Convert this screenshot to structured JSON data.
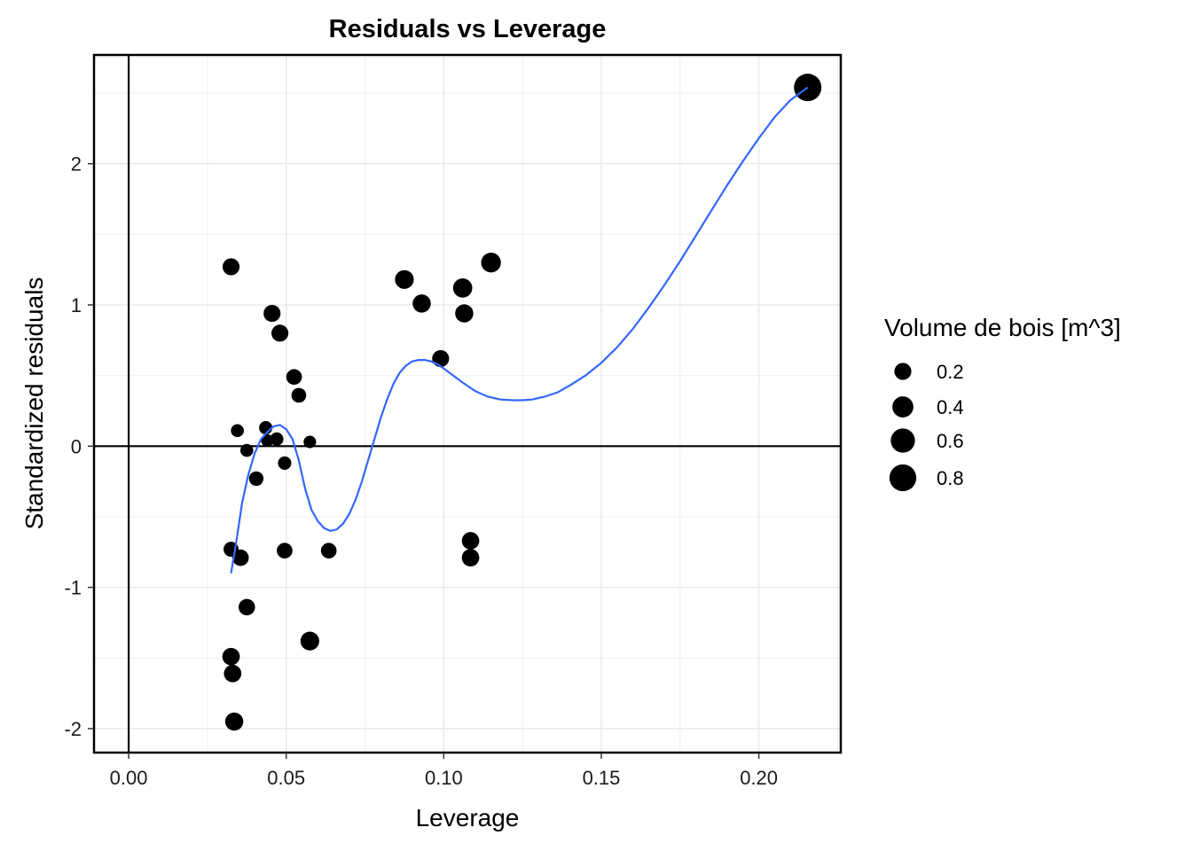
{
  "chart_data": {
    "type": "scatter",
    "title": "Residuals vs Leverage",
    "xlabel": "Leverage",
    "ylabel": "Standardized residuals",
    "xlim": [
      -0.011,
      0.226
    ],
    "ylim": [
      -2.17,
      2.77
    ],
    "x_ticks": [
      0.0,
      0.05,
      0.1,
      0.15,
      0.2
    ],
    "x_tick_labels": [
      "0.00",
      "0.05",
      "0.10",
      "0.15",
      "0.20"
    ],
    "y_ticks": [
      -2,
      -1,
      0,
      1,
      2
    ],
    "y_tick_labels": [
      "-2",
      "-1",
      "0",
      "1",
      "2"
    ],
    "grid": true,
    "reference_lines": {
      "x": 0,
      "y": 0
    },
    "legend": {
      "title": "Volume de bois  [m^3]",
      "placement": "right",
      "entries": [
        {
          "label": "0.2",
          "value": 0.2
        },
        {
          "label": "0.4",
          "value": 0.4
        },
        {
          "label": "0.6",
          "value": 0.6
        },
        {
          "label": "0.8",
          "value": 0.8
        }
      ]
    },
    "size_scale": {
      "domain": [
        0.0,
        0.85
      ]
    },
    "points": [
      {
        "x": 0.0325,
        "y": 1.27,
        "size": 0.2
      },
      {
        "x": 0.0455,
        "y": 0.94,
        "size": 0.2
      },
      {
        "x": 0.048,
        "y": 0.8,
        "size": 0.2
      },
      {
        "x": 0.0525,
        "y": 0.49,
        "size": 0.15
      },
      {
        "x": 0.054,
        "y": 0.36,
        "size": 0.12
      },
      {
        "x": 0.0345,
        "y": 0.11,
        "size": 0.07
      },
      {
        "x": 0.0435,
        "y": 0.13,
        "size": 0.08
      },
      {
        "x": 0.044,
        "y": 0.04,
        "size": 0.06
      },
      {
        "x": 0.047,
        "y": 0.05,
        "size": 0.08
      },
      {
        "x": 0.0575,
        "y": 0.03,
        "size": 0.06
      },
      {
        "x": 0.0375,
        "y": -0.03,
        "size": 0.07
      },
      {
        "x": 0.0495,
        "y": -0.12,
        "size": 0.08
      },
      {
        "x": 0.0405,
        "y": -0.23,
        "size": 0.11
      },
      {
        "x": 0.0325,
        "y": -0.73,
        "size": 0.13
      },
      {
        "x": 0.0355,
        "y": -0.79,
        "size": 0.18
      },
      {
        "x": 0.0495,
        "y": -0.74,
        "size": 0.15
      },
      {
        "x": 0.0635,
        "y": -0.74,
        "size": 0.15
      },
      {
        "x": 0.0375,
        "y": -1.14,
        "size": 0.18
      },
      {
        "x": 0.0575,
        "y": -1.38,
        "size": 0.28
      },
      {
        "x": 0.0325,
        "y": -1.49,
        "size": 0.22
      },
      {
        "x": 0.033,
        "y": -1.61,
        "size": 0.22
      },
      {
        "x": 0.0335,
        "y": -1.95,
        "size": 0.25
      },
      {
        "x": 0.0875,
        "y": 1.18,
        "size": 0.28
      },
      {
        "x": 0.093,
        "y": 1.01,
        "size": 0.25
      },
      {
        "x": 0.106,
        "y": 1.12,
        "size": 0.3
      },
      {
        "x": 0.1065,
        "y": 0.94,
        "size": 0.25
      },
      {
        "x": 0.115,
        "y": 1.3,
        "size": 0.33
      },
      {
        "x": 0.099,
        "y": 0.62,
        "size": 0.2
      },
      {
        "x": 0.1085,
        "y": -0.67,
        "size": 0.22
      },
      {
        "x": 0.1085,
        "y": -0.79,
        "size": 0.22
      },
      {
        "x": 0.2155,
        "y": 2.54,
        "size": 0.85
      }
    ],
    "smooth_line": {
      "color": "#3366ff",
      "points": [
        [
          0.0325,
          -0.9
        ],
        [
          0.034,
          -0.7
        ],
        [
          0.036,
          -0.4
        ],
        [
          0.038,
          -0.2
        ],
        [
          0.04,
          -0.05
        ],
        [
          0.042,
          0.05
        ],
        [
          0.044,
          0.1
        ],
        [
          0.046,
          0.14
        ],
        [
          0.048,
          0.15
        ],
        [
          0.05,
          0.12
        ],
        [
          0.052,
          0.05
        ],
        [
          0.054,
          -0.1
        ],
        [
          0.056,
          -0.3
        ],
        [
          0.058,
          -0.45
        ],
        [
          0.06,
          -0.53
        ],
        [
          0.062,
          -0.58
        ],
        [
          0.064,
          -0.6
        ],
        [
          0.066,
          -0.59
        ],
        [
          0.068,
          -0.55
        ],
        [
          0.07,
          -0.48
        ],
        [
          0.072,
          -0.38
        ],
        [
          0.074,
          -0.25
        ],
        [
          0.076,
          -0.1
        ],
        [
          0.078,
          0.05
        ],
        [
          0.08,
          0.2
        ],
        [
          0.082,
          0.33
        ],
        [
          0.084,
          0.44
        ],
        [
          0.086,
          0.52
        ],
        [
          0.088,
          0.57
        ],
        [
          0.09,
          0.6
        ],
        [
          0.092,
          0.61
        ],
        [
          0.094,
          0.61
        ],
        [
          0.096,
          0.6
        ],
        [
          0.098,
          0.58
        ],
        [
          0.1,
          0.55
        ],
        [
          0.103,
          0.5
        ],
        [
          0.106,
          0.45
        ],
        [
          0.11,
          0.39
        ],
        [
          0.114,
          0.35
        ],
        [
          0.118,
          0.33
        ],
        [
          0.122,
          0.325
        ],
        [
          0.125,
          0.325
        ],
        [
          0.128,
          0.33
        ],
        [
          0.132,
          0.35
        ],
        [
          0.136,
          0.38
        ],
        [
          0.14,
          0.43
        ],
        [
          0.145,
          0.5
        ],
        [
          0.15,
          0.59
        ],
        [
          0.155,
          0.7
        ],
        [
          0.16,
          0.83
        ],
        [
          0.165,
          0.98
        ],
        [
          0.17,
          1.14
        ],
        [
          0.175,
          1.31
        ],
        [
          0.18,
          1.49
        ],
        [
          0.185,
          1.67
        ],
        [
          0.19,
          1.85
        ],
        [
          0.195,
          2.02
        ],
        [
          0.2,
          2.18
        ],
        [
          0.205,
          2.33
        ],
        [
          0.21,
          2.45
        ],
        [
          0.2155,
          2.54
        ]
      ]
    }
  }
}
